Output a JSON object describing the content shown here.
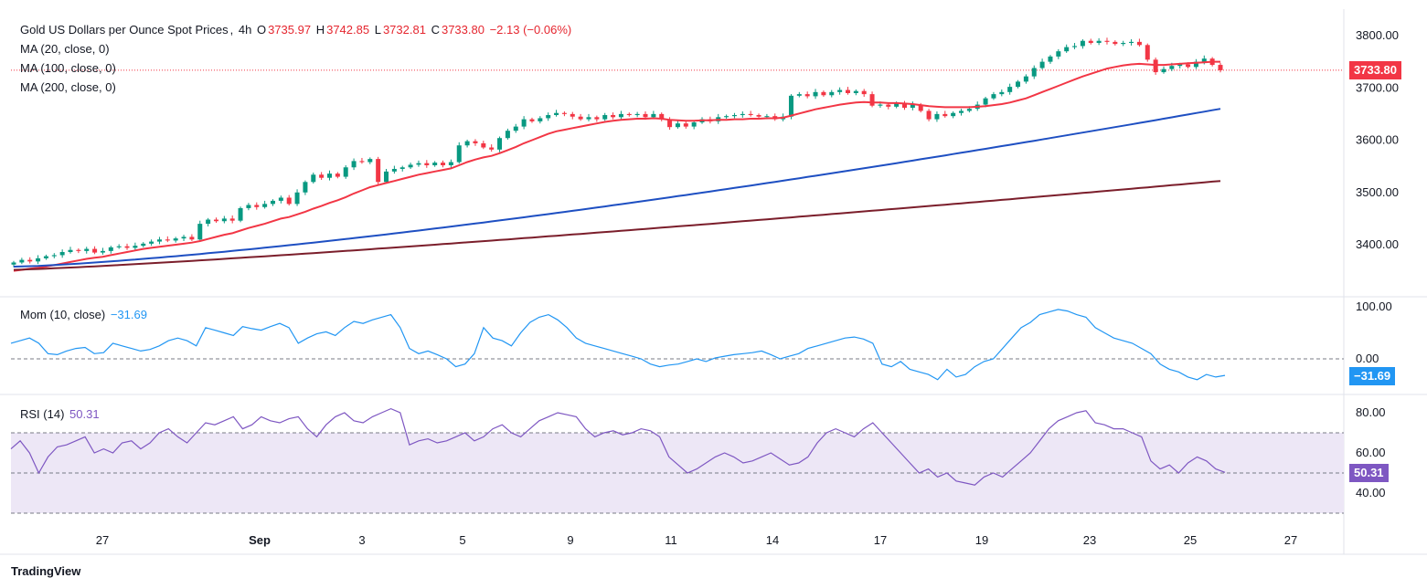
{
  "header": {
    "title": "Gold US Dollars per Ounce Spot Prices",
    "interval": "4h",
    "open_label": "O",
    "open": "3735.97",
    "high_label": "H",
    "high": "3742.85",
    "low_label": "L",
    "low": "3732.81",
    "close_label": "C",
    "close": "3733.80",
    "change": "−2.13 (−0.06%)"
  },
  "indicators": {
    "ma20": "MA (20, close, 0)",
    "ma100": "MA (100, close, 0)",
    "ma200": "MA (200, close, 0)",
    "mom_label": "Mom (10, close)",
    "mom_value": "−31.69",
    "rsi_label": "RSI (14)",
    "rsi_value": "50.31"
  },
  "badges": {
    "price": "3733.80",
    "mom": "−31.69",
    "rsi": "50.31"
  },
  "footer": {
    "logo": "TradingView"
  },
  "colors": {
    "up": "#089981",
    "down": "#f23645",
    "ma20": "#f23645",
    "ma100": "#1e4fc2",
    "ma200": "#7b1e2b",
    "mom": "#2196f3",
    "rsi": "#7e57c2",
    "rsi_band": "#ede7f6"
  },
  "chart_data": [
    {
      "type": "candlestick",
      "title": "Gold US Dollars per Ounce Spot Prices",
      "x_ticks": [
        "27",
        "Sep",
        "3",
        "5",
        "9",
        "11",
        "14",
        "17",
        "19",
        "23",
        "25",
        "27"
      ],
      "y_ticks": [
        "3400.00",
        "3500.00",
        "3600.00",
        "3700.00",
        "3800.00"
      ],
      "ylim": [
        3320,
        3850
      ],
      "last_price": 3733.8,
      "close_series": [
        3366,
        3371,
        3368,
        3374,
        3378,
        3380,
        3386,
        3390,
        3388,
        3392,
        3385,
        3388,
        3395,
        3397,
        3394,
        3398,
        3402,
        3406,
        3410,
        3408,
        3412,
        3415,
        3410,
        3440,
        3448,
        3445,
        3450,
        3446,
        3470,
        3476,
        3472,
        3478,
        3484,
        3490,
        3478,
        3500,
        3520,
        3534,
        3528,
        3536,
        3530,
        3548,
        3560,
        3558,
        3564,
        3520,
        3540,
        3545,
        3548,
        3553,
        3556,
        3552,
        3557,
        3552,
        3558,
        3590,
        3598,
        3594,
        3586,
        3582,
        3604,
        3618,
        3626,
        3640,
        3636,
        3642,
        3648,
        3652,
        3650,
        3645,
        3640,
        3644,
        3640,
        3648,
        3644,
        3650,
        3648,
        3650,
        3644,
        3650,
        3640,
        3625,
        3632,
        3626,
        3634,
        3640,
        3636,
        3644,
        3646,
        3648,
        3650,
        3648,
        3645,
        3646,
        3640,
        3645,
        3685,
        3688,
        3684,
        3692,
        3686,
        3692,
        3696,
        3690,
        3694,
        3688,
        3666,
        3668,
        3664,
        3670,
        3662,
        3668,
        3656,
        3640,
        3650,
        3646,
        3652,
        3656,
        3660,
        3668,
        3680,
        3688,
        3692,
        3702,
        3712,
        3722,
        3738,
        3750,
        3760,
        3770,
        3778,
        3780,
        3790,
        3786,
        3790,
        3788,
        3784,
        3786,
        3788,
        3782,
        3754,
        3730,
        3736,
        3742,
        3745,
        3740,
        3750,
        3756,
        3744,
        3733.8
      ],
      "series": [
        {
          "name": "MA (20, close, 0)",
          "values": [
            3350,
            3352,
            3354,
            3356,
            3358,
            3361,
            3364,
            3367,
            3370,
            3373,
            3375,
            3377,
            3380,
            3383,
            3386,
            3389,
            3392,
            3394,
            3396,
            3398,
            3400,
            3402,
            3404,
            3407,
            3411,
            3415,
            3419,
            3422,
            3427,
            3432,
            3436,
            3440,
            3445,
            3450,
            3453,
            3458,
            3463,
            3469,
            3474,
            3480,
            3485,
            3491,
            3498,
            3504,
            3510,
            3514,
            3518,
            3522,
            3526,
            3530,
            3534,
            3537,
            3540,
            3543,
            3546,
            3552,
            3558,
            3563,
            3567,
            3570,
            3575,
            3581,
            3587,
            3594,
            3600,
            3606,
            3612,
            3617,
            3620,
            3623,
            3626,
            3629,
            3632,
            3635,
            3637,
            3639,
            3640,
            3641,
            3641,
            3642,
            3641,
            3639,
            3638,
            3637,
            3637,
            3638,
            3638,
            3639,
            3639,
            3640,
            3640,
            3641,
            3641,
            3642,
            3642,
            3643,
            3647,
            3651,
            3655,
            3659,
            3662,
            3665,
            3668,
            3670,
            3672,
            3673,
            3672,
            3672,
            3671,
            3671,
            3670,
            3669,
            3667,
            3665,
            3664,
            3663,
            3663,
            3663,
            3663,
            3664,
            3665,
            3667,
            3669,
            3672,
            3676,
            3680,
            3686,
            3692,
            3698,
            3704,
            3710,
            3716,
            3722,
            3727,
            3732,
            3737,
            3740,
            3743,
            3745,
            3746,
            3745,
            3744,
            3744,
            3745,
            3746,
            3747,
            3748,
            3749,
            3750,
            3750
          ]
        },
        {
          "name": "MA (100, close, 0)",
          "range": [
            3358,
            3660
          ]
        },
        {
          "name": "MA (200, close, 0)",
          "range": [
            3352,
            3522
          ]
        }
      ]
    },
    {
      "type": "line",
      "title": "Mom (10, close)",
      "y_ticks": [
        "0.00",
        "100.00"
      ],
      "ylim": [
        -70,
        120
      ],
      "last_value": -31.69,
      "values": [
        30,
        35,
        40,
        30,
        10,
        8,
        15,
        20,
        22,
        10,
        12,
        30,
        25,
        20,
        15,
        18,
        25,
        35,
        40,
        35,
        25,
        60,
        55,
        50,
        45,
        62,
        58,
        55,
        62,
        68,
        60,
        30,
        40,
        48,
        52,
        45,
        60,
        72,
        68,
        75,
        80,
        85,
        60,
        20,
        10,
        15,
        8,
        0,
        -15,
        -10,
        10,
        60,
        40,
        35,
        25,
        50,
        70,
        80,
        85,
        75,
        60,
        40,
        30,
        25,
        20,
        15,
        10,
        5,
        0,
        -10,
        -15,
        -12,
        -10,
        -5,
        0,
        -5,
        2,
        5,
        8,
        10,
        12,
        15,
        8,
        0,
        5,
        10,
        20,
        25,
        30,
        35,
        40,
        42,
        38,
        30,
        -10,
        -15,
        -5,
        -20,
        -25,
        -30,
        -40,
        -20,
        -35,
        -30,
        -15,
        -5,
        0,
        20,
        40,
        60,
        70,
        85,
        90,
        95,
        92,
        85,
        80,
        60,
        50,
        40,
        35,
        30,
        20,
        10,
        -10,
        -20,
        -25,
        -35,
        -40,
        -30,
        -35,
        -31.69
      ]
    },
    {
      "type": "line",
      "title": "RSI (14)",
      "y_ticks": [
        "40.00",
        "60.00",
        "80.00"
      ],
      "ylim": [
        22,
        86
      ],
      "bands": [
        30,
        50,
        70
      ],
      "last_value": 50.31,
      "values": [
        62,
        66,
        60,
        50,
        58,
        63,
        64,
        66,
        68,
        60,
        62,
        60,
        65,
        66,
        62,
        65,
        70,
        72,
        68,
        65,
        70,
        75,
        74,
        76,
        78,
        72,
        74,
        78,
        76,
        75,
        77,
        78,
        72,
        68,
        74,
        78,
        80,
        76,
        75,
        78,
        80,
        82,
        80,
        64,
        66,
        67,
        65,
        66,
        68,
        70,
        66,
        68,
        72,
        74,
        70,
        68,
        72,
        76,
        78,
        80,
        79,
        78,
        72,
        68,
        70,
        71,
        69,
        70,
        72,
        71,
        68,
        58,
        54,
        50,
        52,
        55,
        58,
        60,
        58,
        55,
        56,
        58,
        60,
        57,
        54,
        55,
        58,
        65,
        70,
        72,
        70,
        68,
        72,
        75,
        70,
        65,
        60,
        55,
        50,
        52,
        48,
        50,
        46,
        45,
        44,
        48,
        50,
        48,
        52,
        56,
        60,
        66,
        72,
        76,
        78,
        80,
        81,
        75,
        74,
        72,
        72,
        70,
        68,
        56,
        52,
        54,
        50,
        55,
        58,
        56,
        52,
        50.31
      ]
    }
  ]
}
